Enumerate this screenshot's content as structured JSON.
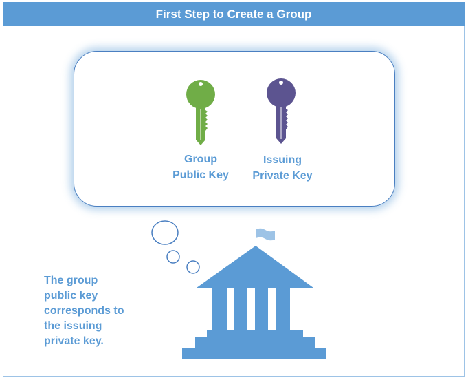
{
  "title": "First Step to Create a Group",
  "keys": [
    {
      "label": "Group\nPublic Key",
      "color": "#70ad47"
    },
    {
      "label": "Issuing\nPrivate Key",
      "color": "#5c5490"
    }
  ],
  "note": "The group\npublic key\ncorresponds to\nthe issuing\nprivate key.",
  "colors": {
    "accent": "#5b9bd5",
    "flag": "#9dc3e6",
    "bubble_border": "#4a7fc1"
  },
  "icons": [
    "key-icon",
    "building-icon",
    "flag-icon",
    "thought-bubble-icon"
  ]
}
